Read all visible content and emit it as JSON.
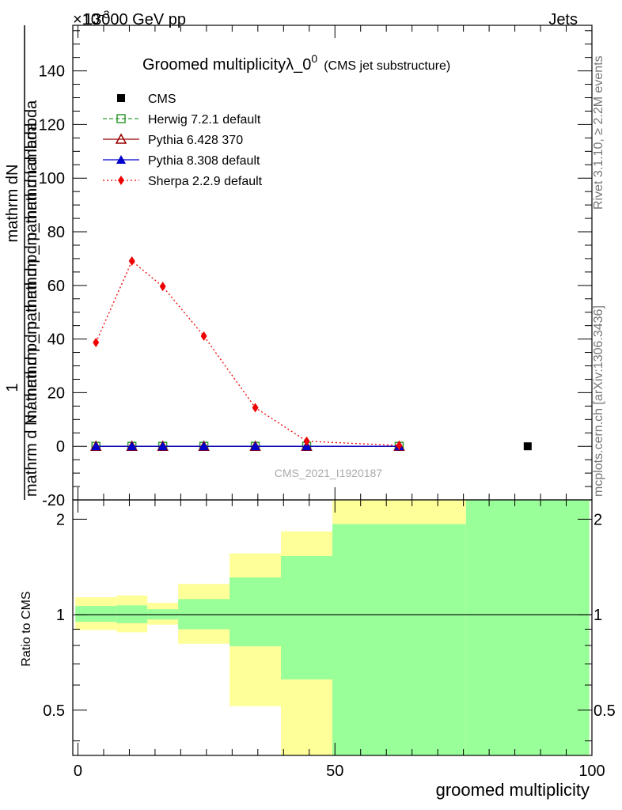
{
  "header": {
    "left": "13000 GeV pp",
    "right": "Jets",
    "multiplier": "×10",
    "multiplier_exp": "-3"
  },
  "side_labels": {
    "rivet": "Rivet 3.1.10, ≥ 2.2M events",
    "mcplots": "mcplots.cern.ch [arXiv:1306.3436]"
  },
  "watermark": "CMS_2021_I1920187",
  "chart_data": [
    {
      "type": "line",
      "title": "Groomed multiplicityλ_0",
      "title_sup": "0",
      "subtitle": "(CMS jet substructure)",
      "ylabel_num": "1",
      "ylabel_den_parts": [
        "mathrm d N / mathrm d p",
        "mathrm d p",
        "mathrm d lambda"
      ],
      "ylabel_numerator_parts": [
        "mathrm d",
        "N"
      ],
      "ylabel_denominator_parts": [
        "mathrm d p",
        "mathrm d p",
        "mathrm d lambda"
      ],
      "ylabel_top": "mathrm dN",
      "ylabel_bottom": "mathrm d p_mathrm d p_mathrm d lambda",
      "ylabel_main": "mathrm d N / mathrm d p_mathrm d p_mathrm d lambda",
      "xlim": [
        -1,
        100
      ],
      "ylim": [
        -20,
        157
      ],
      "yticks": [
        -20,
        0,
        20,
        40,
        60,
        80,
        100,
        120,
        140
      ],
      "legend_position": "top-left",
      "series": [
        {
          "name": "CMS",
          "color": "#000000",
          "marker": "square",
          "points": [
            [
              87.5,
              0
            ]
          ]
        },
        {
          "name": "Herwig 7.2.1 default",
          "color": "#339933",
          "marker": "open-square",
          "line": "dashed",
          "points": [
            [
              3.5,
              0
            ],
            [
              10.5,
              0
            ],
            [
              16.5,
              0
            ],
            [
              24.5,
              0
            ],
            [
              34.5,
              0
            ],
            [
              44.5,
              0
            ],
            [
              62.5,
              0
            ]
          ]
        },
        {
          "name": "Pythia 6.428 370",
          "color": "#990000",
          "marker": "open-triangle",
          "line": "solid",
          "points": [
            [
              3.5,
              0
            ],
            [
              10.5,
              0
            ],
            [
              16.5,
              0
            ],
            [
              24.5,
              0
            ],
            [
              34.5,
              0
            ],
            [
              44.5,
              0
            ],
            [
              62.5,
              0
            ]
          ]
        },
        {
          "name": "Pythia 8.308 default",
          "color": "#0000cc",
          "marker": "triangle",
          "line": "solid",
          "points": [
            [
              3.5,
              0
            ],
            [
              10.5,
              0
            ],
            [
              16.5,
              0
            ],
            [
              24.5,
              0
            ],
            [
              34.5,
              0
            ],
            [
              44.5,
              0
            ],
            [
              62.5,
              0
            ]
          ]
        },
        {
          "name": "Sherpa 2.2.9 default",
          "color": "#ee0000",
          "marker": "diamond",
          "line": "dotted",
          "points": [
            [
              3.5,
              38.7
            ],
            [
              10.5,
              69.1
            ],
            [
              16.5,
              59.6
            ],
            [
              24.5,
              41.1
            ],
            [
              34.5,
              14.4
            ],
            [
              44.5,
              1.9
            ],
            [
              62.5,
              0.3
            ]
          ]
        }
      ]
    },
    {
      "type": "area",
      "ylabel": "Ratio to CMS",
      "xlabel": "groomed multiplicity",
      "xlim": [
        -1,
        100
      ],
      "ylim": [
        0.36,
        2.3
      ],
      "scale": "log",
      "xticks": [
        0,
        50,
        100
      ],
      "yticks": [
        0.5,
        1,
        2
      ],
      "reference": 1,
      "bands": [
        {
          "x0": -0.5,
          "x1": 7.5,
          "yellow": [
            0.895,
            1.135
          ],
          "green": [
            0.95,
            1.065
          ]
        },
        {
          "x0": 7.5,
          "x1": 13.5,
          "yellow": [
            0.88,
            1.15
          ],
          "green": [
            0.94,
            1.07
          ]
        },
        {
          "x0": 13.5,
          "x1": 19.5,
          "yellow": [
            0.93,
            1.09
          ],
          "green": [
            0.965,
            1.04
          ]
        },
        {
          "x0": 19.5,
          "x1": 29.5,
          "yellow": [
            0.81,
            1.25
          ],
          "green": [
            0.9,
            1.12
          ]
        },
        {
          "x0": 29.5,
          "x1": 39.5,
          "yellow": [
            0.515,
            1.56
          ],
          "green": [
            0.795,
            1.31
          ]
        },
        {
          "x0": 39.5,
          "x1": 49.5,
          "yellow": [
            0.36,
            1.83
          ],
          "green": [
            0.625,
            1.53
          ]
        },
        {
          "x0": 49.5,
          "x1": 75.5,
          "yellow": [
            0.36,
            2.3
          ],
          "green": [
            0.36,
            1.93
          ]
        },
        {
          "x0": 75.5,
          "x1": 99.5,
          "yellow": [
            0.36,
            2.3
          ],
          "green": [
            0.36,
            2.3
          ]
        }
      ]
    }
  ]
}
